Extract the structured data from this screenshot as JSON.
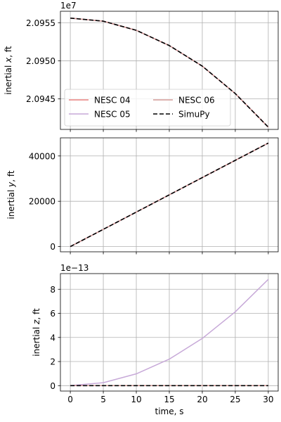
{
  "chart_data": [
    {
      "type": "line",
      "title": "",
      "offset_label": "1e7",
      "ylabel": "inertial x, ft",
      "xlim": [
        -1.5,
        31.5
      ],
      "ylim": [
        2.0941,
        2.09565
      ],
      "y_ticks": [
        2.0945,
        2.095,
        2.0955
      ],
      "y_tick_labels": [
        "2.0945",
        "2.0950",
        "2.0955"
      ],
      "grid": true,
      "legend": {
        "placement": "lower-left",
        "columns": 2,
        "entries": [
          "NESC 04",
          "NESC 05",
          "NESC 06",
          "SimuPy"
        ]
      },
      "series": [
        {
          "name": "NESC 04",
          "color": "#e8807e",
          "style": "solid",
          "x": [
            0,
            5,
            10,
            15,
            20,
            25,
            30
          ],
          "y": [
            2.09556,
            2.09552,
            2.0954,
            2.0952,
            2.09493,
            2.09457,
            2.09413
          ]
        },
        {
          "name": "NESC 05",
          "color": "#c7a9d8",
          "style": "solid",
          "x": [
            0,
            5,
            10,
            15,
            20,
            25,
            30
          ],
          "y": [
            2.09556,
            2.09552,
            2.0954,
            2.0952,
            2.09493,
            2.09457,
            2.09413
          ]
        },
        {
          "name": "NESC 06",
          "color": "#d49a96",
          "style": "solid",
          "x": [
            0,
            5,
            10,
            15,
            20,
            25,
            30
          ],
          "y": [
            2.09556,
            2.09552,
            2.0954,
            2.0952,
            2.09493,
            2.09457,
            2.09413
          ]
        },
        {
          "name": "SimuPy",
          "color": "#000000",
          "style": "dashed",
          "x": [
            0,
            5,
            10,
            15,
            20,
            25,
            30
          ],
          "y": [
            2.09556,
            2.09552,
            2.0954,
            2.0952,
            2.09493,
            2.09457,
            2.09413
          ]
        }
      ]
    },
    {
      "type": "line",
      "title": "",
      "ylabel": "inertial y, ft",
      "xlim": [
        -1.5,
        31.5
      ],
      "ylim": [
        -2300,
        48000
      ],
      "y_ticks": [
        0,
        20000,
        40000
      ],
      "y_tick_labels": [
        "0",
        "20000",
        "40000"
      ],
      "grid": true,
      "series": [
        {
          "name": "NESC 04",
          "color": "#e8807e",
          "style": "solid",
          "x": [
            0,
            30
          ],
          "y": [
            0,
            45700
          ]
        },
        {
          "name": "NESC 05",
          "color": "#c7a9d8",
          "style": "solid",
          "x": [
            0,
            30
          ],
          "y": [
            0,
            45700
          ]
        },
        {
          "name": "NESC 06",
          "color": "#d49a96",
          "style": "solid",
          "x": [
            0,
            30
          ],
          "y": [
            0,
            45700
          ]
        },
        {
          "name": "SimuPy",
          "color": "#000000",
          "style": "dashed",
          "x": [
            0,
            30
          ],
          "y": [
            0,
            45700
          ]
        }
      ]
    },
    {
      "type": "line",
      "title": "",
      "offset_label": "1e−13",
      "xlabel": "time, s",
      "ylabel": "inertial z, ft",
      "xlim": [
        -1.5,
        31.5
      ],
      "ylim": [
        -0.45,
        9.3
      ],
      "x_ticks": [
        0,
        5,
        10,
        15,
        20,
        25,
        30
      ],
      "x_tick_labels": [
        "0",
        "5",
        "10",
        "15",
        "20",
        "25",
        "30"
      ],
      "y_ticks": [
        0,
        2,
        4,
        6,
        8
      ],
      "y_tick_labels": [
        "0",
        "2",
        "4",
        "6",
        "8"
      ],
      "grid": true,
      "series": [
        {
          "name": "NESC 04",
          "color": "#e8807e",
          "style": "solid",
          "x": [
            0,
            30
          ],
          "y": [
            0,
            0
          ]
        },
        {
          "name": "NESC 05",
          "color": "#c7a9d8",
          "style": "solid",
          "x": [
            0,
            5,
            10,
            15,
            20,
            25,
            30
          ],
          "y": [
            0,
            0.245,
            0.98,
            2.2,
            3.92,
            6.13,
            8.82
          ]
        },
        {
          "name": "NESC 06",
          "color": "#d49a96",
          "style": "solid",
          "x": [
            0,
            30
          ],
          "y": [
            0,
            0
          ]
        },
        {
          "name": "SimuPy",
          "color": "#000000",
          "style": "dashed",
          "x": [
            0,
            30
          ],
          "y": [
            0,
            0
          ]
        }
      ]
    }
  ]
}
